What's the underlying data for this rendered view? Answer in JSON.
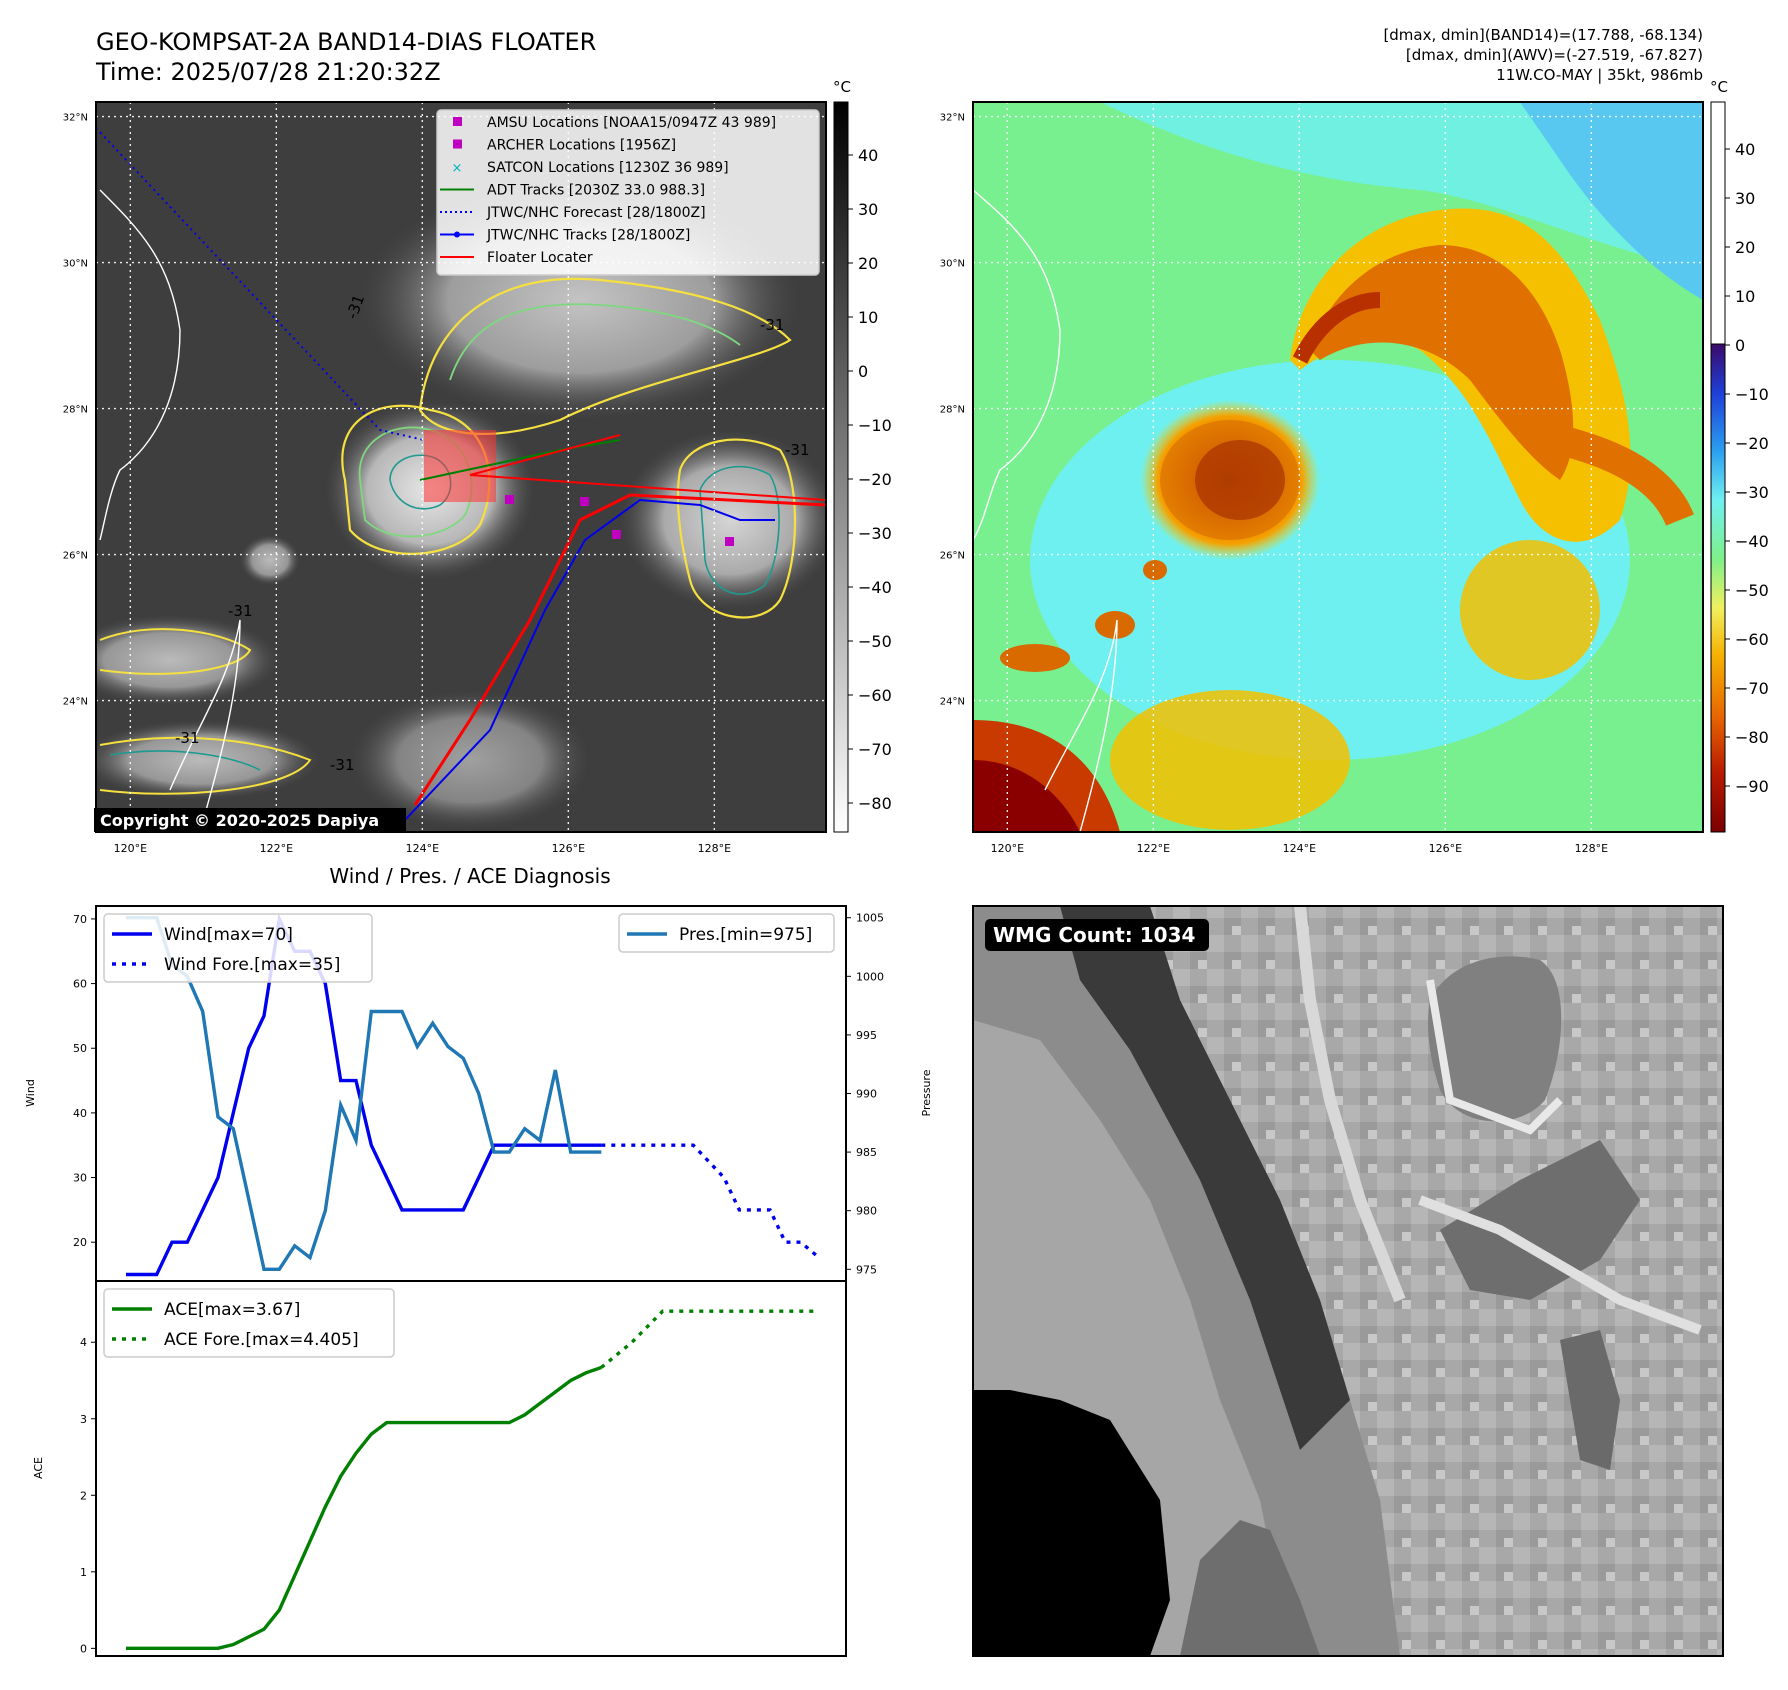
{
  "header": {
    "title_line1": "GEO-KOMPSAT-2A BAND14-DIAS FLOATER",
    "title_line2": "Time: 2025/07/28 21:20:32Z",
    "info_line1": "[dmax, dmin](BAND14)=(17.788, -68.134)",
    "info_line2": "[dmax, dmin](AWV)=(-27.519, -67.827)",
    "info_line3": "11W.CO-MAY | 35kt, 986mb"
  },
  "copyright": "Copyright © 2020-2025 Dapiya",
  "map": {
    "lon_ticks": [
      "120°E",
      "122°E",
      "124°E",
      "126°E",
      "128°E"
    ],
    "lat_ticks": [
      "32°N",
      "30°N",
      "28°N",
      "26°N",
      "24°N"
    ],
    "contour_labels": [
      "-31",
      "-31",
      "-31",
      "-31",
      "-31",
      "-31"
    ]
  },
  "ir_colorbar": {
    "unit": "°C",
    "ticks": [
      "40",
      "30",
      "20",
      "10",
      "0",
      "−10",
      "−20",
      "−30",
      "−40",
      "−50",
      "−60",
      "−70",
      "−80"
    ]
  },
  "color_colorbar": {
    "unit": "°C",
    "ticks": [
      "40",
      "30",
      "20",
      "10",
      "0",
      "−10",
      "−20",
      "−30",
      "−40",
      "−50",
      "−60",
      "−70",
      "−80",
      "−90"
    ]
  },
  "map_legend": {
    "items": [
      {
        "label": "AMSU Locations [NOAA15/0947Z 43 989]",
        "color": "#c000c0",
        "kind": "square"
      },
      {
        "label": "ARCHER Locations [1956Z]",
        "color": "#c000c0",
        "kind": "square"
      },
      {
        "label": "SATCON Locations [1230Z 36 989]",
        "color": "#00b5b5",
        "kind": "x"
      },
      {
        "label": "ADT Tracks [2030Z 33.0 988.3]",
        "color": "#008000",
        "kind": "line"
      },
      {
        "label": "JTWC/NHC Forecast [28/1800Z]",
        "color": "#0000ff",
        "kind": "dotted"
      },
      {
        "label": "JTWC/NHC Tracks [28/1800Z]",
        "color": "#0000ff",
        "kind": "line-dot"
      },
      {
        "label": "Floater Locater",
        "color": "#ff0000",
        "kind": "line"
      }
    ]
  },
  "wmg": {
    "label": "WMG Count: 1034"
  },
  "chart_data": [
    {
      "type": "line",
      "title": "Wind / Pres. / ACE Diagnosis",
      "ylabel": "Wind",
      "y2label": "Pressure",
      "ylim": [
        14,
        72
      ],
      "y2lim": [
        974,
        1006
      ],
      "y_ticks": [
        "20",
        "30",
        "40",
        "50",
        "60",
        "70"
      ],
      "y2_ticks": [
        "975",
        "980",
        "985",
        "990",
        "995",
        "1000",
        "1005"
      ],
      "x": [
        0,
        1,
        2,
        3,
        4,
        5,
        6,
        7,
        8,
        9,
        10,
        11,
        12,
        13,
        14,
        15,
        16,
        17,
        18,
        19,
        20,
        21,
        22,
        23,
        24,
        25,
        26,
        27,
        28,
        29,
        30,
        31,
        32,
        33,
        34,
        35,
        36,
        37,
        38,
        39,
        40,
        41,
        42,
        43,
        44,
        45
      ],
      "series": [
        {
          "name": "Wind[max=70]",
          "color": "#0000ee",
          "style": "solid",
          "x": [
            0,
            1,
            2,
            3,
            4,
            5,
            6,
            7,
            8,
            9,
            10,
            11,
            12,
            13,
            14,
            15,
            16,
            17,
            18,
            19,
            20,
            21,
            22,
            23,
            24,
            25,
            26,
            27,
            28,
            29,
            30,
            31
          ],
          "values": [
            15,
            15,
            15,
            20,
            20,
            25,
            30,
            40,
            50,
            55,
            70,
            65,
            65,
            60,
            45,
            45,
            35,
            30,
            25,
            25,
            25,
            25,
            25,
            30,
            35,
            35,
            35,
            35,
            35,
            35,
            35,
            35
          ]
        },
        {
          "name": "Wind Fore.[max=35]",
          "color": "#0000ee",
          "style": "dotted",
          "x": [
            31,
            33,
            35,
            37,
            39,
            40,
            41,
            42,
            43,
            44,
            45
          ],
          "values": [
            35,
            35,
            35,
            35,
            30,
            25,
            25,
            25,
            20,
            20,
            18
          ]
        },
        {
          "name": "Pres.[min=975]",
          "color": "#1f77b4",
          "style": "solid",
          "axis": "right",
          "x": [
            0,
            1,
            2,
            3,
            4,
            5,
            6,
            7,
            8,
            9,
            10,
            11,
            12,
            13,
            14,
            15,
            16,
            17,
            18,
            19,
            20,
            21,
            22,
            23,
            24,
            25,
            26,
            27,
            28,
            29,
            30,
            31
          ],
          "values": [
            1005,
            1005,
            1005,
            1001,
            1000,
            997,
            988,
            987,
            981,
            975,
            975,
            977,
            976,
            980,
            989,
            986,
            997,
            997,
            997,
            994,
            996,
            994,
            993,
            990,
            985,
            985,
            987,
            986,
            992,
            985,
            985,
            985
          ]
        }
      ]
    },
    {
      "type": "line",
      "ylabel": "ACE",
      "ylim": [
        -0.1,
        4.8
      ],
      "y_ticks": [
        "0",
        "1",
        "2",
        "3",
        "4"
      ],
      "series": [
        {
          "name": "ACE[max=3.67]",
          "color": "#008000",
          "style": "solid",
          "x": [
            0,
            1,
            2,
            3,
            4,
            5,
            6,
            7,
            8,
            9,
            10,
            11,
            12,
            13,
            14,
            15,
            16,
            17,
            18,
            19,
            20,
            21,
            22,
            23,
            24,
            25,
            26,
            27,
            28,
            29,
            30,
            31
          ],
          "values": [
            0,
            0,
            0,
            0,
            0,
            0,
            0,
            0.05,
            0.15,
            0.25,
            0.5,
            0.95,
            1.4,
            1.85,
            2.25,
            2.55,
            2.8,
            2.95,
            2.95,
            2.95,
            2.95,
            2.95,
            2.95,
            2.95,
            2.95,
            2.95,
            3.05,
            3.2,
            3.35,
            3.5,
            3.6,
            3.67
          ]
        },
        {
          "name": "ACE Fore.[max=4.405]",
          "color": "#008000",
          "style": "dotted",
          "x": [
            31,
            33,
            35,
            37,
            39,
            41,
            43,
            45
          ],
          "values": [
            3.67,
            4.0,
            4.405,
            4.405,
            4.405,
            4.405,
            4.405,
            4.405
          ]
        }
      ]
    }
  ]
}
